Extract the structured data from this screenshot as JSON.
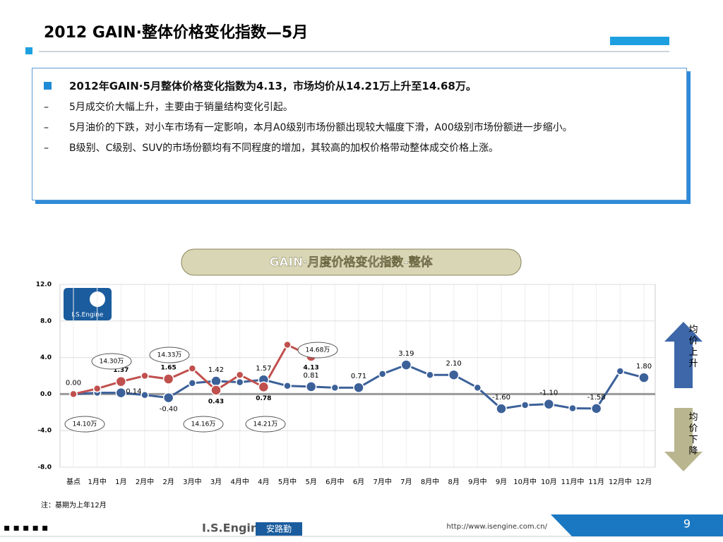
{
  "header": {
    "title": "2012 GAIN·整体价格变化指数—5月"
  },
  "summary": {
    "headline": "2012年GAIN·5月整体价格变化指数为4.13，市场均价从14.21万上升至14.68万。",
    "points": [
      "5月成交价大幅上升，主要由于销量结构变化引起。",
      "5月油价的下跌，对小车市场有一定影响，本月A0级别市场份额出现较大幅度下滑，A00级别市场份额进一步缩小。",
      "B级别、C级别、SUV的市场份额均有不同程度的增加，其较高的加权价格带动整体成交价格上涨。"
    ]
  },
  "chart_data": {
    "type": "line",
    "title": "GAIN·月度价格变化指数-整体",
    "logo": "I.S.Engine",
    "categories": [
      "基点",
      "1月中",
      "1月",
      "2月中",
      "2月",
      "3月中",
      "3月",
      "4月中",
      "4月",
      "5月中",
      "5月",
      "6月中",
      "6月",
      "7月中",
      "7月",
      "8月中",
      "8月",
      "9月中",
      "9月",
      "10月中",
      "10月",
      "11月中",
      "11月",
      "12月中",
      "12月"
    ],
    "series": [
      {
        "color": "#3c6199",
        "values": [
          0,
          0.15,
          0.14,
          -0.1,
          -0.4,
          1.2,
          1.42,
          1.3,
          1.57,
          0.9,
          0.81,
          0.7,
          0.71,
          2.2,
          3.19,
          2.1,
          2.1,
          0.7,
          -1.6,
          -1.2,
          -1.1,
          -1.55,
          -1.58,
          2.5,
          1.8
        ],
        "value_labels": [
          "0.00",
          null,
          "0.14",
          null,
          "-0.40",
          null,
          "1.42",
          null,
          "1.57",
          null,
          "0.81",
          null,
          "0.71",
          null,
          "3.19",
          null,
          "2.10",
          null,
          "-1.60",
          null,
          "-1.10",
          null,
          "-1.58",
          null,
          "1.80"
        ]
      },
      {
        "color": "#c0504d",
        "values": [
          0,
          0.6,
          1.37,
          2.0,
          1.65,
          2.8,
          0.43,
          2.1,
          0.78,
          5.4,
          4.13,
          null,
          null,
          null,
          null,
          null,
          null,
          null,
          null,
          null,
          null,
          null,
          null,
          null,
          null
        ],
        "value_labels": [
          null,
          null,
          "1.37",
          null,
          "1.65",
          null,
          "0.43",
          null,
          "0.78",
          null,
          "4.13",
          null,
          null,
          null,
          null,
          null,
          null,
          null,
          null,
          null,
          null,
          null,
          null,
          null,
          null
        ]
      }
    ],
    "ylim": [
      -8,
      12
    ],
    "yticks": [
      {
        "value": 12,
        "label": "12.0"
      },
      {
        "value": 8,
        "label": "8.0"
      },
      {
        "value": 4,
        "label": "4.0"
      },
      {
        "value": 0,
        "label": "0.0"
      },
      {
        "value": -4,
        "label": "-4.0"
      },
      {
        "value": -8,
        "label": "-8.0"
      }
    ],
    "grid": true,
    "annotations": [
      "14.30万",
      "14.33万",
      "14.68万",
      "14.10万",
      "14.16万",
      "14.21万"
    ],
    "side_labels": [
      "均价上升",
      "均价下降"
    ],
    "note": "注：基期为上年12月"
  },
  "footer": {
    "brand": "I.S.Engine",
    "brand_cn": "安路勤",
    "url": "http://www.isengine.com.cn/",
    "page": "9"
  }
}
